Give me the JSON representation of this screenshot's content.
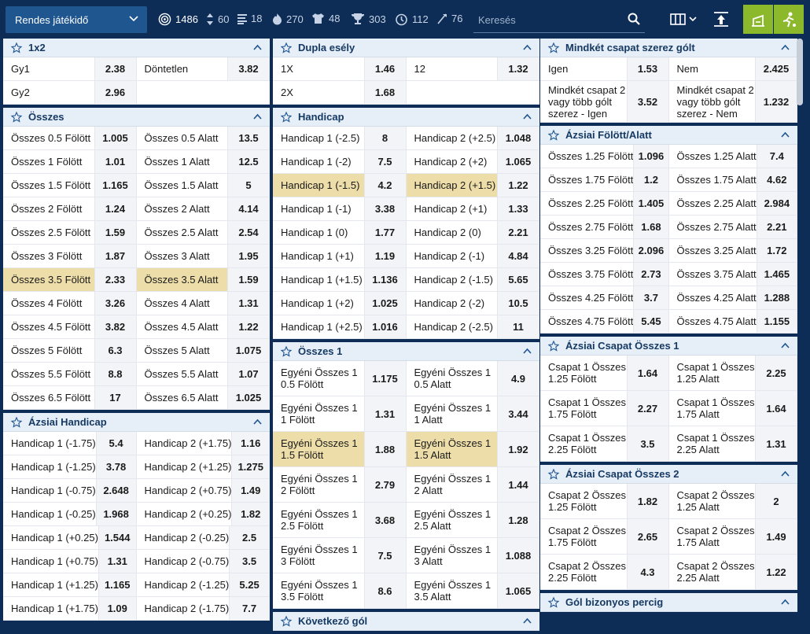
{
  "topbar": {
    "period": "Rendes játékidő",
    "categories": [
      {
        "icon": "target-icon",
        "count": "1486"
      },
      {
        "icon": "up-down-arrows-icon",
        "count": "60"
      },
      {
        "icon": "stats-bars-icon",
        "count": "18"
      },
      {
        "icon": "flame-icon",
        "count": "270"
      },
      {
        "icon": "shirt-icon",
        "count": "48"
      },
      {
        "icon": "trophy-icon",
        "count": "303"
      },
      {
        "icon": "timer-icon",
        "count": "112"
      },
      {
        "icon": "corner-flag-icon",
        "count": "76"
      }
    ],
    "search_placeholder": "Keresés"
  },
  "col1": [
    {
      "title": "1x2",
      "rows": [
        [
          [
            "Gy1",
            "2.38"
          ],
          [
            "Döntetlen",
            "3.82"
          ]
        ],
        [
          [
            "Gy2",
            "2.96"
          ],
          [
            "",
            ""
          ]
        ]
      ]
    },
    {
      "title": "Összes",
      "rows": [
        [
          [
            "Összes 0.5 Fölött",
            "1.005"
          ],
          [
            "Összes 0.5 Alatt",
            "13.5"
          ]
        ],
        [
          [
            "Összes 1 Fölött",
            "1.01"
          ],
          [
            "Összes 1 Alatt",
            "12.5"
          ]
        ],
        [
          [
            "Összes 1.5 Fölött",
            "1.165"
          ],
          [
            "Összes 1.5 Alatt",
            "5"
          ]
        ],
        [
          [
            "Összes 2 Fölött",
            "1.24"
          ],
          [
            "Összes 2 Alatt",
            "4.14"
          ]
        ],
        [
          [
            "Összes 2.5 Fölött",
            "1.59"
          ],
          [
            "Összes 2.5 Alatt",
            "2.54"
          ]
        ],
        [
          [
            "Összes 3 Fölött",
            "1.87"
          ],
          [
            "Összes 3 Alatt",
            "1.95"
          ]
        ],
        [
          [
            "Összes 3.5 Fölött",
            "2.33"
          ],
          [
            "Összes 3.5 Alatt",
            "1.59"
          ]
        ],
        [
          [
            "Összes 4 Fölött",
            "3.26"
          ],
          [
            "Összes 4 Alatt",
            "1.31"
          ]
        ],
        [
          [
            "Összes 4.5 Fölött",
            "3.82"
          ],
          [
            "Összes 4.5 Alatt",
            "1.22"
          ]
        ],
        [
          [
            "Összes 5 Fölött",
            "6.3"
          ],
          [
            "Összes 5 Alatt",
            "1.075"
          ]
        ],
        [
          [
            "Összes 5.5 Fölött",
            "8.8"
          ],
          [
            "Összes 5.5 Alatt",
            "1.07"
          ]
        ],
        [
          [
            "Összes 6.5 Fölött",
            "17"
          ],
          [
            "Összes 6.5 Alatt",
            "1.025"
          ]
        ]
      ]
    },
    {
      "title": "Ázsiai Handicap",
      "rows": [
        [
          [
            "Handicap 1 (-1.75)",
            "5.4"
          ],
          [
            "Handicap 2 (+1.75)",
            "1.16"
          ]
        ],
        [
          [
            "Handicap 1 (-1.25)",
            "3.78"
          ],
          [
            "Handicap 2 (+1.25)",
            "1.275"
          ]
        ],
        [
          [
            "Handicap 1 (-0.75)",
            "2.648"
          ],
          [
            "Handicap 2 (+0.75)",
            "1.49"
          ]
        ],
        [
          [
            "Handicap 1 (-0.25)",
            "1.968"
          ],
          [
            "Handicap 2 (+0.25)",
            "1.82"
          ]
        ],
        [
          [
            "Handicap 1 (+0.25)",
            "1.544"
          ],
          [
            "Handicap 2 (-0.25)",
            "2.5"
          ]
        ],
        [
          [
            "Handicap 1 (+0.75)",
            "1.31"
          ],
          [
            "Handicap 2 (-0.75)",
            "3.5"
          ]
        ],
        [
          [
            "Handicap 1 (+1.25)",
            "1.165"
          ],
          [
            "Handicap 2 (-1.25)",
            "5.25"
          ]
        ],
        [
          [
            "Handicap 1 (+1.75)",
            "1.09"
          ],
          [
            "Handicap 2 (-1.75)",
            "7.7"
          ]
        ]
      ]
    }
  ],
  "col2": [
    {
      "title": "Dupla esély",
      "rows": [
        [
          [
            "1X",
            "1.46"
          ],
          [
            "12",
            "1.32"
          ]
        ],
        [
          [
            "2X",
            "1.68"
          ],
          [
            "",
            ""
          ]
        ]
      ]
    },
    {
      "title": "Handicap",
      "rows": [
        [
          [
            "Handicap 1 (-2.5)",
            "8"
          ],
          [
            "Handicap 2 (+2.5)",
            "1.048"
          ]
        ],
        [
          [
            "Handicap 1 (-2)",
            "7.5"
          ],
          [
            "Handicap 2 (+2)",
            "1.065"
          ]
        ],
        [
          [
            "Handicap 1 (-1.5)",
            "4.2"
          ],
          [
            "Handicap 2 (+1.5)",
            "1.22"
          ]
        ],
        [
          [
            "Handicap 1 (-1)",
            "3.38"
          ],
          [
            "Handicap 2 (+1)",
            "1.33"
          ]
        ],
        [
          [
            "Handicap 1 (0)",
            "1.77"
          ],
          [
            "Handicap 2 (0)",
            "2.21"
          ]
        ],
        [
          [
            "Handicap 1 (+1)",
            "1.19"
          ],
          [
            "Handicap 2 (-1)",
            "4.84"
          ]
        ],
        [
          [
            "Handicap 1 (+1.5)",
            "1.136"
          ],
          [
            "Handicap 2 (-1.5)",
            "5.65"
          ]
        ],
        [
          [
            "Handicap 1 (+2)",
            "1.025"
          ],
          [
            "Handicap 2 (-2)",
            "10.5"
          ]
        ],
        [
          [
            "Handicap 1 (+2.5)",
            "1.016"
          ],
          [
            "Handicap 2 (-2.5)",
            "11"
          ]
        ]
      ]
    },
    {
      "title": "Összes 1",
      "rows": [
        [
          [
            "Egyéni Összes 1 0.5 Fölött",
            "1.175"
          ],
          [
            "Egyéni Összes 1 0.5 Alatt",
            "4.9"
          ]
        ],
        [
          [
            "Egyéni Összes 1 1 Fölött",
            "1.31"
          ],
          [
            "Egyéni Összes 1 1 Alatt",
            "3.44"
          ]
        ],
        [
          [
            "Egyéni Összes 1 1.5 Fölött",
            "1.88"
          ],
          [
            "Egyéni Összes 1 1.5 Alatt",
            "1.92"
          ]
        ],
        [
          [
            "Egyéni Összes 1 2 Fölött",
            "2.79"
          ],
          [
            "Egyéni Összes 1 2 Alatt",
            "1.44"
          ]
        ],
        [
          [
            "Egyéni Összes 1 2.5 Fölött",
            "3.68"
          ],
          [
            "Egyéni Összes 1 2.5 Alatt",
            "1.28"
          ]
        ],
        [
          [
            "Egyéni Összes 1 3 Fölött",
            "7.5"
          ],
          [
            "Egyéni Összes 1 3 Alatt",
            "1.088"
          ]
        ],
        [
          [
            "Egyéni Összes 1 3.5 Fölött",
            "8.6"
          ],
          [
            "Egyéni Összes 1 3.5 Alatt",
            "1.065"
          ]
        ]
      ]
    },
    {
      "title": "Következő gól",
      "rows": []
    }
  ],
  "col3": [
    {
      "title": "Mindkét csapat szerez gólt",
      "rows": [
        [
          [
            "Igen",
            "1.53"
          ],
          [
            "Nem",
            "2.425"
          ]
        ],
        [
          [
            "Mindkét csapat 2 vagy több gólt szerez - Igen",
            "3.52"
          ],
          [
            "Mindkét csapat 2 vagy több gólt szerez - Nem",
            "1.232"
          ]
        ]
      ]
    },
    {
      "title": "Ázsiai Fölött/Alatt",
      "rows": [
        [
          [
            "Összes 1.25 Fölött",
            "1.096"
          ],
          [
            "Összes 1.25 Alatt",
            "7.4"
          ]
        ],
        [
          [
            "Összes 1.75 Fölött",
            "1.2"
          ],
          [
            "Összes 1.75 Alatt",
            "4.62"
          ]
        ],
        [
          [
            "Összes 2.25 Fölött",
            "1.405"
          ],
          [
            "Összes 2.25 Alatt",
            "2.984"
          ]
        ],
        [
          [
            "Összes 2.75 Fölött",
            "1.68"
          ],
          [
            "Összes 2.75 Alatt",
            "2.21"
          ]
        ],
        [
          [
            "Összes 3.25 Fölött",
            "2.096"
          ],
          [
            "Összes 3.25 Alatt",
            "1.72"
          ]
        ],
        [
          [
            "Összes 3.75 Fölött",
            "2.73"
          ],
          [
            "Összes 3.75 Alatt",
            "1.465"
          ]
        ],
        [
          [
            "Összes 4.25 Fölött",
            "3.7"
          ],
          [
            "Összes 4.25 Alatt",
            "1.288"
          ]
        ],
        [
          [
            "Összes 4.75 Fölött",
            "5.45"
          ],
          [
            "Összes 4.75 Alatt",
            "1.155"
          ]
        ]
      ]
    },
    {
      "title": "Ázsiai Csapat Összes 1",
      "rows": [
        [
          [
            "Csapat 1 Összes 1.25 Fölött",
            "1.64"
          ],
          [
            "Csapat 1 Összes 1.25 Alatt",
            "2.25"
          ]
        ],
        [
          [
            "Csapat 1 Összes 1.75 Fölött",
            "2.27"
          ],
          [
            "Csapat 1 Összes 1.75 Alatt",
            "1.64"
          ]
        ],
        [
          [
            "Csapat 1 Összes 2.25 Fölött",
            "3.5"
          ],
          [
            "Csapat 1 Összes 2.25 Alatt",
            "1.31"
          ]
        ]
      ]
    },
    {
      "title": "Ázsiai Csapat Összes 2",
      "rows": [
        [
          [
            "Csapat 2 Összes 1.25 Fölött",
            "1.82"
          ],
          [
            "Csapat 2 Összes 1.25 Alatt",
            "2"
          ]
        ],
        [
          [
            "Csapat 2 Összes 1.75 Fölött",
            "2.65"
          ],
          [
            "Csapat 2 Összes 1.75 Alatt",
            "1.49"
          ]
        ],
        [
          [
            "Csapat 2 Összes 2.25 Fölött",
            "4.3"
          ],
          [
            "Csapat 2 Összes 2.25 Alatt",
            "1.22"
          ]
        ]
      ]
    },
    {
      "title": "Gól bizonyos percig",
      "rows": []
    }
  ],
  "highlight_color": "#eddda9",
  "accent_green": "#8cb82b"
}
